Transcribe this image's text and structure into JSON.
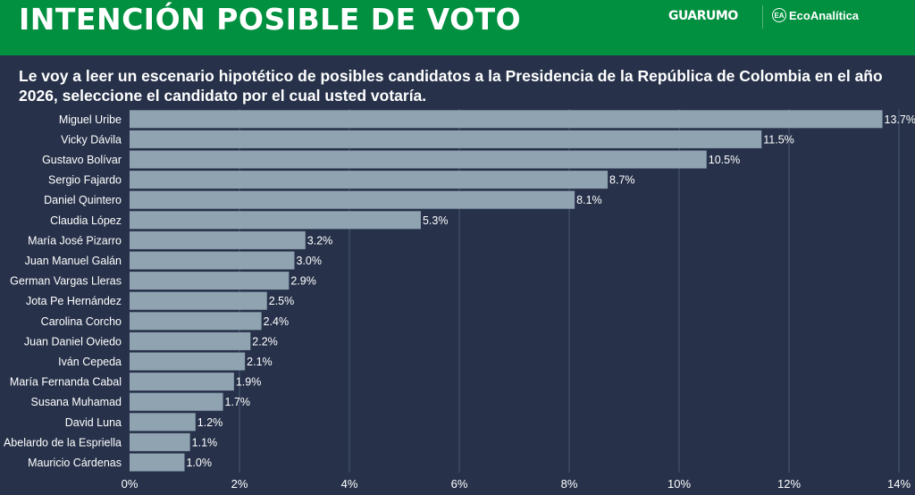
{
  "header": {
    "title": "INTENCIÓN POSIBLE DE VOTO",
    "logo_guarumo": "GUARUMO",
    "logo_ecoanalitica": "EcoAnalítica",
    "colors": {
      "header": "#00903f",
      "background": "#27324a"
    }
  },
  "chart_data": {
    "type": "bar",
    "orientation": "horizontal",
    "title": "Le voy a leer un escenario hipotético de posibles candidatos a la Presidencia de la República de Colombia en el año 2026, seleccione el candidato por el cual usted votaría.",
    "categories": [
      "Miguel Uribe",
      "Vicky Dávila",
      "Gustavo Bolívar",
      "Sergio Fajardo",
      "Daniel Quintero",
      "Claudia López",
      "María José Pizarro",
      "Juan Manuel Galán",
      "German Vargas Lleras",
      "Jota Pe Hernández",
      "Carolina Corcho",
      "Juan Daniel Oviedo",
      "Iván Cepeda",
      "María Fernanda Cabal",
      "Susana Muhamad",
      "David Luna",
      "Abelardo de la Espriella",
      "Mauricio Cárdenas"
    ],
    "values": [
      13.7,
      11.5,
      10.5,
      8.7,
      8.1,
      5.3,
      3.2,
      3.0,
      2.9,
      2.5,
      2.4,
      2.2,
      2.1,
      1.9,
      1.7,
      1.2,
      1.1,
      1.0
    ],
    "data_labels": [
      "13.7%",
      "11.5%",
      "10.5%",
      "8.7%",
      "8.1%",
      "5.3%",
      "3.2%",
      "3.0%",
      "2.9%",
      "2.5%",
      "2.4%",
      "2.2%",
      "2.1%",
      "1.9%",
      "1.7%",
      "1.2%",
      "1.1%",
      "1.0%"
    ],
    "xlim": [
      0,
      14
    ],
    "xticks": [
      "0%",
      "2%",
      "4%",
      "6%",
      "8%",
      "10%",
      "12%",
      "14%"
    ],
    "grid": true,
    "bar_color": "#8fa3b1"
  }
}
